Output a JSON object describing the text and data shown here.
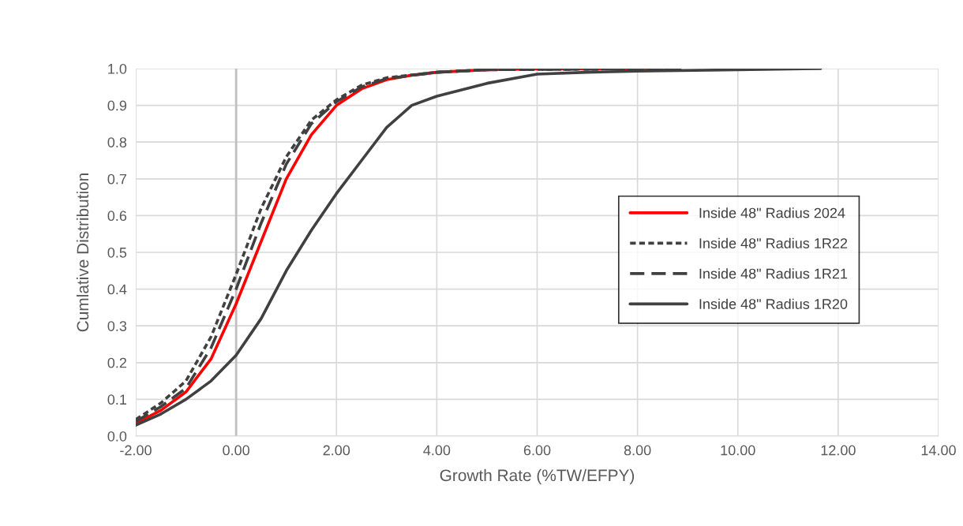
{
  "chart_data": {
    "type": "line",
    "xlabel": "Growth Rate (%TW/EFPY)",
    "ylabel": "Cumlative Distribution",
    "xlim": [
      -2,
      14
    ],
    "ylim": [
      0,
      1
    ],
    "xticks": [
      {
        "value": -2,
        "label": "-2.00"
      },
      {
        "value": 0,
        "label": "0.00"
      },
      {
        "value": 2,
        "label": "2.00"
      },
      {
        "value": 4,
        "label": "4.00"
      },
      {
        "value": 6,
        "label": "6.00"
      },
      {
        "value": 8,
        "label": "8.00"
      },
      {
        "value": 10,
        "label": "10.00"
      },
      {
        "value": 12,
        "label": "12.00"
      },
      {
        "value": 14,
        "label": "14.00"
      }
    ],
    "yticks": [
      {
        "value": 0,
        "label": "0.0"
      },
      {
        "value": 0.1,
        "label": "0.1"
      },
      {
        "value": 0.2,
        "label": "0.2"
      },
      {
        "value": 0.3,
        "label": "0.3"
      },
      {
        "value": 0.4,
        "label": "0.4"
      },
      {
        "value": 0.5,
        "label": "0.5"
      },
      {
        "value": 0.6,
        "label": "0.6"
      },
      {
        "value": 0.7,
        "label": "0.7"
      },
      {
        "value": 0.8,
        "label": "0.8"
      },
      {
        "value": 0.9,
        "label": "0.9"
      },
      {
        "value": 1,
        "label": "1.0"
      }
    ],
    "grid": true,
    "legend": "right",
    "marker": "none",
    "ref_lines": [
      {
        "axis": "x",
        "value": 0,
        "color": "#bfbfbf"
      }
    ],
    "series": [
      {
        "name": "Inside 48\" Radius 2024",
        "color": "#ff0000",
        "line_style": "solid",
        "x": [
          -2,
          -1.5,
          -1,
          -0.5,
          0,
          0.5,
          1,
          1.5,
          2,
          2.5,
          3,
          3.5,
          4,
          5,
          6,
          8.85
        ],
        "values": [
          0.035,
          0.07,
          0.12,
          0.21,
          0.36,
          0.53,
          0.7,
          0.82,
          0.9,
          0.945,
          0.97,
          0.982,
          0.99,
          0.997,
          0.999,
          1.0
        ]
      },
      {
        "name": "Inside 48\" Radius 1R22",
        "color": "#404040",
        "line_style": "dotted",
        "x": [
          -2,
          -1.5,
          -1,
          -0.5,
          0,
          0.5,
          1,
          1.5,
          2,
          2.5,
          3,
          4,
          5,
          8.85
        ],
        "values": [
          0.045,
          0.09,
          0.15,
          0.27,
          0.44,
          0.62,
          0.76,
          0.86,
          0.915,
          0.955,
          0.975,
          0.99,
          0.997,
          1.0
        ]
      },
      {
        "name": "Inside 48\" Radius 1R21",
        "color": "#404040",
        "line_style": "dashed",
        "x": [
          -2,
          -1.5,
          -1,
          -0.5,
          0,
          0.5,
          1,
          1.5,
          2,
          2.5,
          3,
          4,
          5,
          8.85
        ],
        "values": [
          0.04,
          0.08,
          0.13,
          0.24,
          0.4,
          0.58,
          0.74,
          0.85,
          0.91,
          0.95,
          0.973,
          0.99,
          0.997,
          1.0
        ]
      },
      {
        "name": "Inside 48\" Radius 1R20",
        "color": "#404040",
        "line_style": "solid",
        "x": [
          -2,
          -1.5,
          -1,
          -0.5,
          0,
          0.5,
          1,
          1.5,
          2,
          2.5,
          3,
          3.5,
          4,
          5,
          6,
          7,
          8,
          10,
          11.65
        ],
        "values": [
          0.03,
          0.06,
          0.1,
          0.15,
          0.22,
          0.32,
          0.45,
          0.56,
          0.66,
          0.75,
          0.84,
          0.9,
          0.925,
          0.96,
          0.985,
          0.99,
          0.993,
          0.997,
          1.0
        ]
      }
    ]
  }
}
